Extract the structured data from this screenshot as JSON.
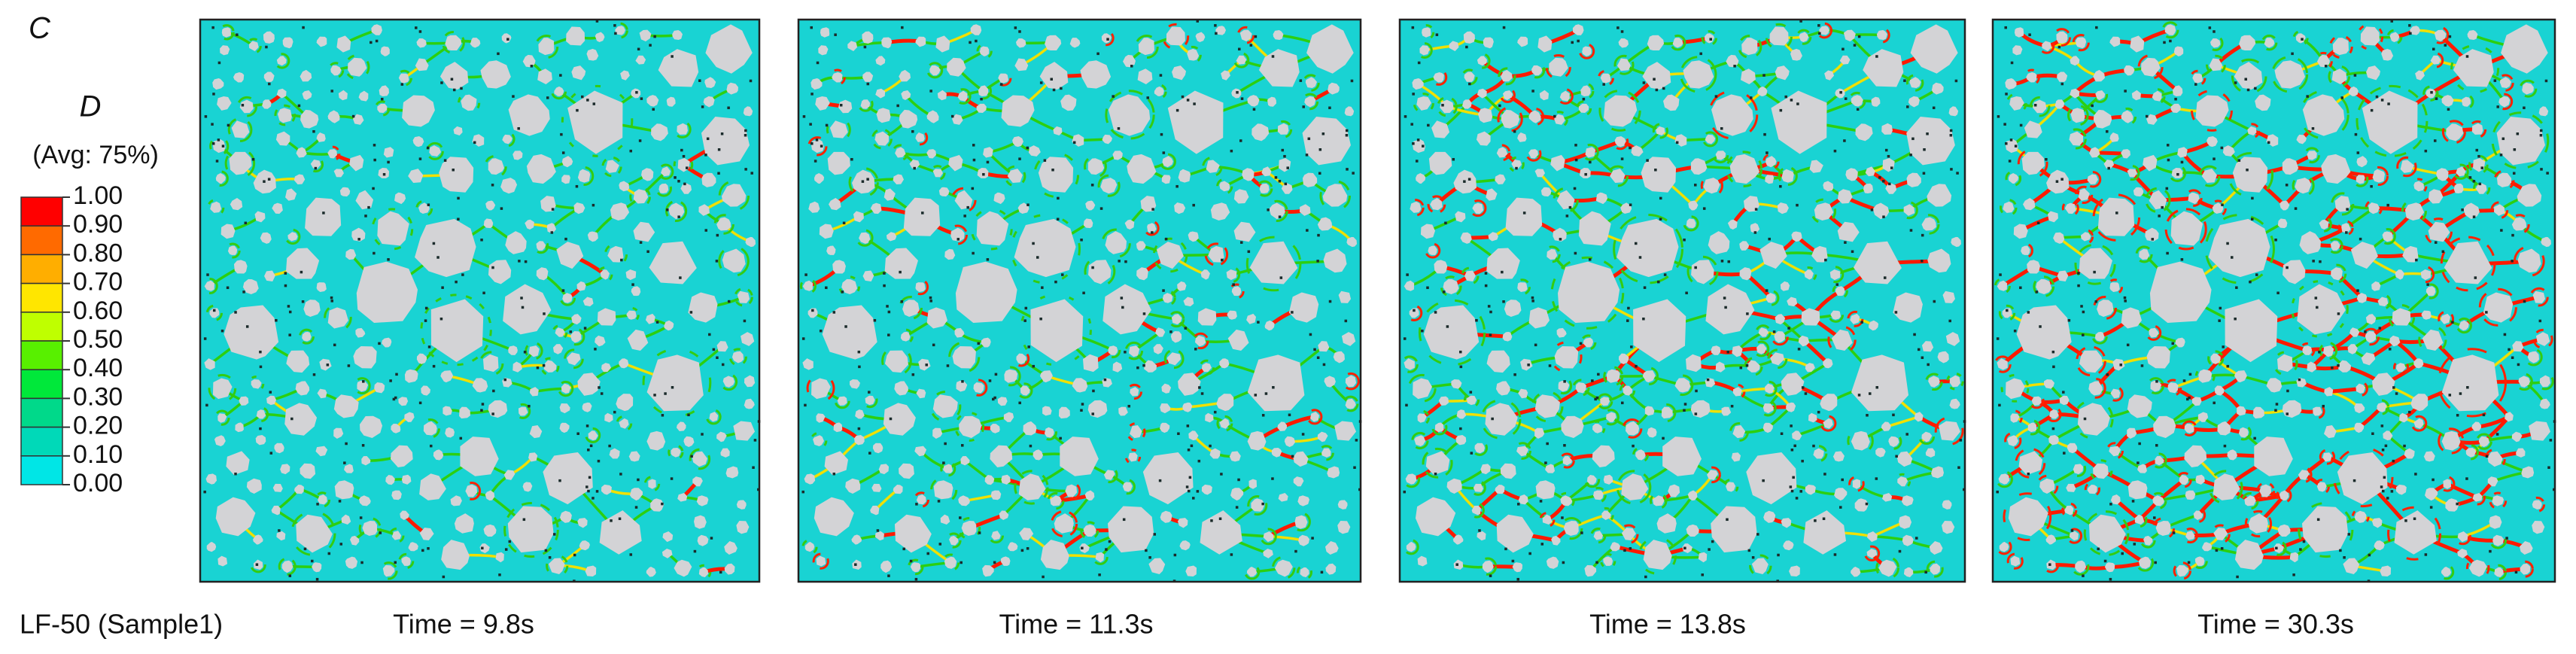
{
  "panel_label": "C",
  "legend": {
    "title": "D",
    "subtitle": "(Avg: 75%)",
    "ticks": [
      "1.00",
      "0.90",
      "0.80",
      "0.70",
      "0.60",
      "0.50",
      "0.40",
      "0.30",
      "0.20",
      "0.10",
      "0.00"
    ],
    "colors": [
      "#ff0000",
      "#ff6a00",
      "#ffae00",
      "#ffe600",
      "#bfff00",
      "#58f000",
      "#00e83a",
      "#00d98a",
      "#00d9b8",
      "#00e6e6"
    ]
  },
  "sample_label": "LF-50 (Sample1)",
  "panels": [
    {
      "caption": "Time = 9.8s"
    },
    {
      "caption": "Time = 11.3s"
    },
    {
      "caption": "Time = 13.8s"
    },
    {
      "caption": "Time = 30.3s"
    }
  ]
}
